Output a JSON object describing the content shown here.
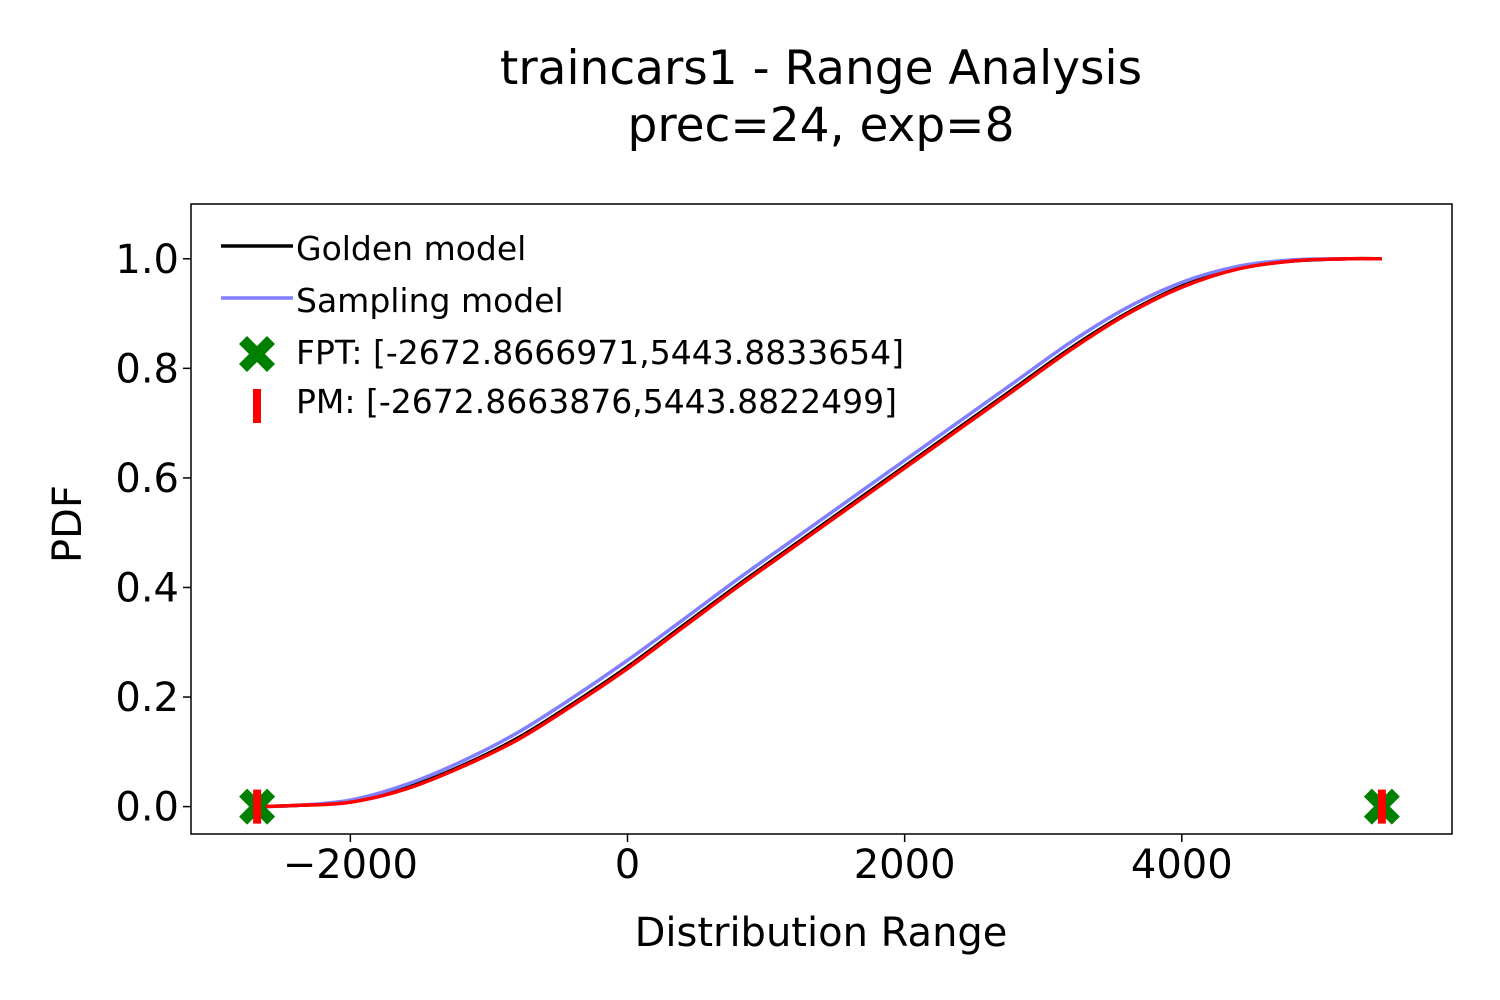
{
  "chart_data": {
    "type": "line",
    "title": "traincars1 - Range Analysis",
    "subtitle": "prec=24, exp=8",
    "xlabel": "Distribution Range",
    "ylabel": "PDF",
    "xlim": [
      -3150,
      5950
    ],
    "ylim": [
      -0.05,
      1.1
    ],
    "xticks": [
      -2000,
      0,
      2000,
      4000
    ],
    "xtick_labels": [
      "−2000",
      "0",
      "2000",
      "4000"
    ],
    "yticks": [
      0.0,
      0.2,
      0.4,
      0.6,
      0.8,
      1.0
    ],
    "ytick_labels": [
      "0.0",
      "0.2",
      "0.4",
      "0.6",
      "0.8",
      "1.0"
    ],
    "grid": false,
    "legend_position": "top-left",
    "series": [
      {
        "name": "Golden model",
        "color": "#000000",
        "x": [
          -2672.87,
          -2400,
          -2000,
          -1600,
          -1200,
          -800,
          -400,
          0,
          400,
          800,
          1200,
          1600,
          2000,
          2400,
          2800,
          3200,
          3600,
          4000,
          4400,
          4800,
          5200,
          5443.88
        ],
        "y": [
          0.0,
          0.002,
          0.009,
          0.034,
          0.074,
          0.124,
          0.187,
          0.255,
          0.33,
          0.405,
          0.477,
          0.549,
          0.621,
          0.693,
          0.765,
          0.837,
          0.9,
          0.95,
          0.982,
          0.996,
          1.0,
          1.0
        ]
      },
      {
        "name": "Sampling model",
        "color": "#7f7fff",
        "x": [
          -2672.87,
          -2400,
          -2000,
          -1600,
          -1200,
          -800,
          -400,
          0,
          400,
          800,
          1200,
          1600,
          2000,
          2400,
          2800,
          3200,
          3600,
          4000,
          4400,
          4800,
          5200,
          5443.88
        ],
        "y": [
          0.0,
          0.002,
          0.012,
          0.04,
          0.082,
          0.134,
          0.198,
          0.267,
          0.341,
          0.416,
          0.488,
          0.56,
          0.632,
          0.704,
          0.776,
          0.848,
          0.91,
          0.957,
          0.986,
          0.998,
          1.0,
          1.0
        ]
      },
      {
        "name": "PM",
        "color": "#ff0000",
        "x": [
          -2672.87,
          -2400,
          -2000,
          -1600,
          -1200,
          -800,
          -400,
          0,
          400,
          800,
          1200,
          1600,
          2000,
          2400,
          2800,
          3200,
          3600,
          4000,
          4400,
          4800,
          5200,
          5443.88
        ],
        "y": [
          0.0,
          0.002,
          0.008,
          0.032,
          0.072,
          0.121,
          0.184,
          0.252,
          0.327,
          0.402,
          0.474,
          0.546,
          0.618,
          0.69,
          0.762,
          0.834,
          0.898,
          0.948,
          0.981,
          0.996,
          1.0,
          1.0
        ]
      }
    ],
    "markers": [
      {
        "name": "FPT",
        "label": "FPT: [-2672.8666971,5443.8833654]",
        "shape": "X",
        "color": "#008000",
        "x": [
          -2672.8666971,
          5443.8833654
        ],
        "y": [
          0.0,
          0.0
        ]
      },
      {
        "name": "PM",
        "label": "PM: [-2672.8663876,5443.8822499]",
        "shape": "vline",
        "color": "#ff0000",
        "x": [
          -2672.8663876,
          5443.8822499
        ],
        "y": [
          0.0,
          0.0
        ]
      }
    ]
  }
}
